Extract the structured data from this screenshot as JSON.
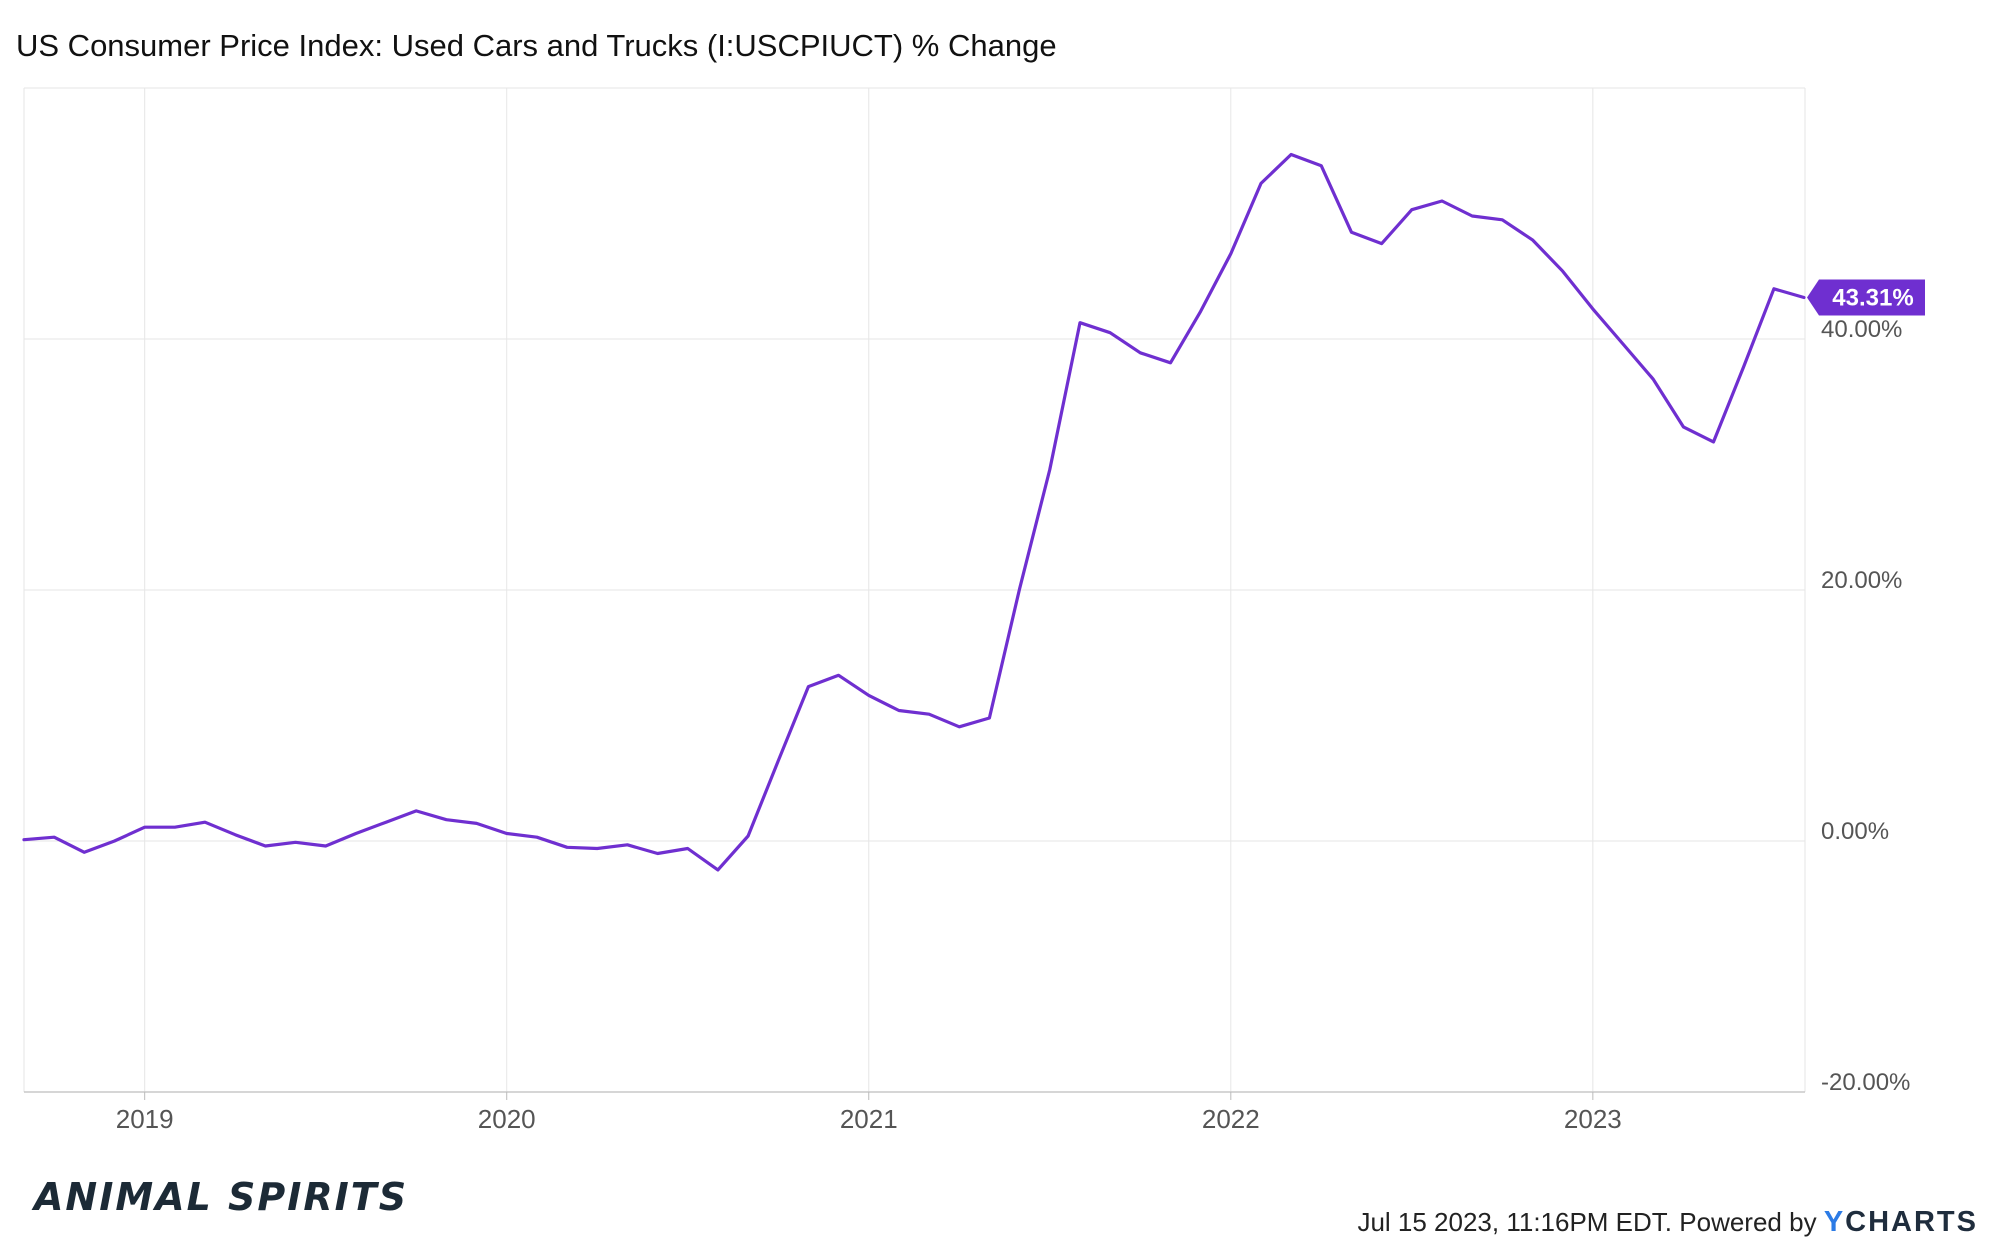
{
  "title": "US Consumer Price Index: Used Cars and Trucks (I:USCPIUCT) % Change",
  "colors": {
    "line": "#6f2fd0",
    "grid": "#e6e6e6",
    "text": "#555555",
    "badge": "#6f2fd0"
  },
  "logo": "ANIMAL SPIRITS",
  "footer": {
    "timestamp": "Jul 15 2023, 11:16PM EDT.",
    "powered_by": "Powered by",
    "brand_y": "Y",
    "brand_rest": "CHARTS"
  },
  "chart_data": {
    "type": "line",
    "x_axis": {
      "ticks": [
        "2019",
        "2020",
        "2021",
        "2022",
        "2023"
      ]
    },
    "y_axis": {
      "ticks": [
        "-20.00%",
        "0.00%",
        "20.00%",
        "40.00%"
      ],
      "ylim": [
        -20,
        60
      ],
      "position": "right",
      "grid": true
    },
    "last_value_label": "43.31%",
    "series": [
      {
        "values": [
          {
            "x": "2018-09",
            "y": 0.1
          },
          {
            "x": "2018-10",
            "y": 0.3
          },
          {
            "x": "2018-11",
            "y": -0.9
          },
          {
            "x": "2018-12",
            "y": 0.0
          },
          {
            "x": "2019-01",
            "y": 1.1
          },
          {
            "x": "2019-02",
            "y": 1.1
          },
          {
            "x": "2019-03",
            "y": 1.5
          },
          {
            "x": "2019-04",
            "y": 0.5
          },
          {
            "x": "2019-05",
            "y": -0.4
          },
          {
            "x": "2019-06",
            "y": -0.1
          },
          {
            "x": "2019-07",
            "y": -0.4
          },
          {
            "x": "2019-08",
            "y": 0.6
          },
          {
            "x": "2019-09",
            "y": 1.5
          },
          {
            "x": "2019-10",
            "y": 2.4
          },
          {
            "x": "2019-11",
            "y": 1.7
          },
          {
            "x": "2019-12",
            "y": 1.4
          },
          {
            "x": "2020-01",
            "y": 0.6
          },
          {
            "x": "2020-02",
            "y": 0.3
          },
          {
            "x": "2020-03",
            "y": -0.5
          },
          {
            "x": "2020-04",
            "y": -0.6
          },
          {
            "x": "2020-05",
            "y": -0.3
          },
          {
            "x": "2020-06",
            "y": -1.0
          },
          {
            "x": "2020-07",
            "y": -0.6
          },
          {
            "x": "2020-08",
            "y": -2.3
          },
          {
            "x": "2020-09",
            "y": 0.4
          },
          {
            "x": "2020-10",
            "y": 6.4
          },
          {
            "x": "2020-11",
            "y": 12.3
          },
          {
            "x": "2020-12",
            "y": 13.2
          },
          {
            "x": "2021-01",
            "y": 11.6
          },
          {
            "x": "2021-02",
            "y": 10.4
          },
          {
            "x": "2021-03",
            "y": 10.1
          },
          {
            "x": "2021-04",
            "y": 9.1
          },
          {
            "x": "2021-05",
            "y": 9.8
          },
          {
            "x": "2021-06",
            "y": 20.1
          },
          {
            "x": "2021-07",
            "y": 29.6
          },
          {
            "x": "2021-08",
            "y": 41.3
          },
          {
            "x": "2021-09",
            "y": 40.5
          },
          {
            "x": "2021-10",
            "y": 38.9
          },
          {
            "x": "2021-11",
            "y": 38.1
          },
          {
            "x": "2021-12",
            "y": 42.2
          },
          {
            "x": "2022-01",
            "y": 46.8
          },
          {
            "x": "2022-02",
            "y": 52.4
          },
          {
            "x": "2022-03",
            "y": 54.7
          },
          {
            "x": "2022-04",
            "y": 53.8
          },
          {
            "x": "2022-05",
            "y": 48.5
          },
          {
            "x": "2022-06",
            "y": 47.6
          },
          {
            "x": "2022-07",
            "y": 50.3
          },
          {
            "x": "2022-08",
            "y": 51.0
          },
          {
            "x": "2022-09",
            "y": 49.8
          },
          {
            "x": "2022-10",
            "y": 49.5
          },
          {
            "x": "2022-11",
            "y": 47.9
          },
          {
            "x": "2022-12",
            "y": 45.4
          },
          {
            "x": "2023-01",
            "y": 42.4
          },
          {
            "x": "2023-02",
            "y": 39.6
          },
          {
            "x": "2023-03",
            "y": 36.8
          },
          {
            "x": "2023-04",
            "y": 33.0
          },
          {
            "x": "2023-05",
            "y": 31.8
          },
          {
            "x": "2023-06",
            "y": 37.8
          },
          {
            "x": "2023-07",
            "y": 44.0
          },
          {
            "x": "2023-08",
            "y": 43.31
          }
        ]
      }
    ]
  }
}
